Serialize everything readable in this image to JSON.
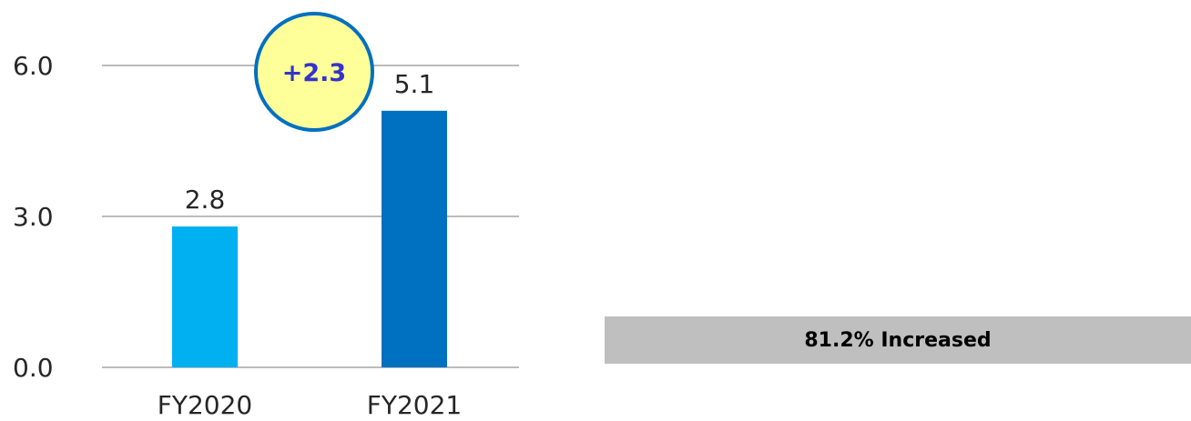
{
  "chart_data": {
    "type": "bar",
    "categories": [
      "FY2020",
      "FY2021"
    ],
    "values": [
      2.8,
      5.1
    ],
    "data_labels": [
      "2.8",
      "5.1"
    ],
    "ylim": [
      0,
      6
    ],
    "yticks": [
      "0.0",
      "3.0",
      "6.0"
    ],
    "grid": true,
    "colors": [
      "#00b0f0",
      "#0070c0"
    ],
    "annotation": {
      "text": "+2.3",
      "fill": "#ffff99",
      "stroke": "#0070c0",
      "text_color": "#3333cc"
    }
  },
  "summary": {
    "text": "81.2% Increased",
    "background": "#bfbfbf"
  }
}
